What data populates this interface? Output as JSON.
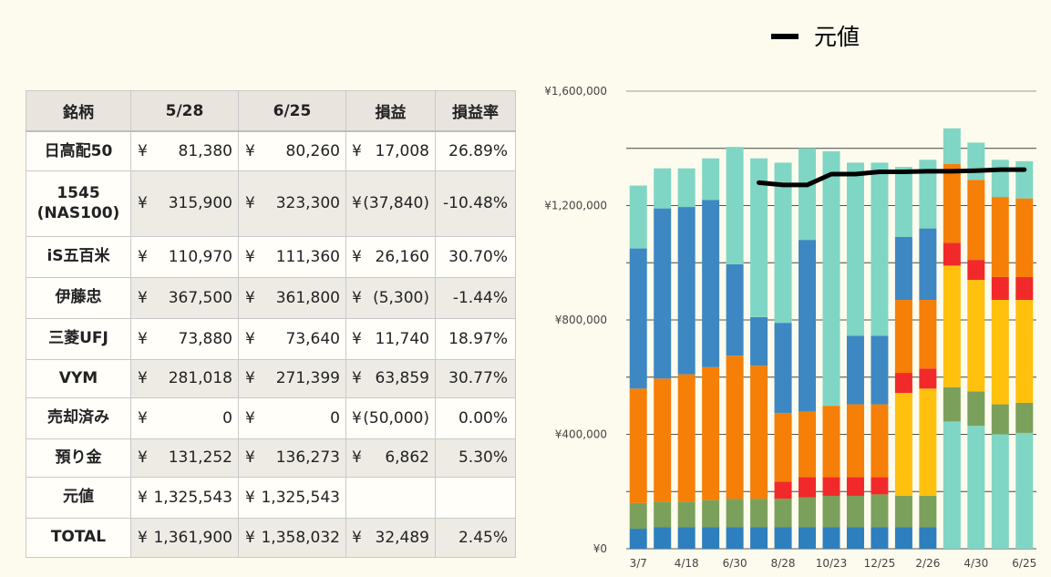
{
  "table": {
    "headers": [
      "銘柄",
      "5/28",
      "6/25",
      "損益",
      "損益率"
    ],
    "rows": [
      {
        "name": "日高配50",
        "v1": "81,380",
        "v2": "80,260",
        "pl": "17,008",
        "rate": "26.89%"
      },
      {
        "name": "1545\n(NAS100)",
        "v1": "315,900",
        "v2": "323,300",
        "pl": "(37,840)",
        "rate": "-10.48%"
      },
      {
        "name": "iS五百米",
        "v1": "110,970",
        "v2": "111,360",
        "pl": "26,160",
        "rate": "30.70%"
      },
      {
        "name": "伊藤忠",
        "v1": "367,500",
        "v2": "361,800",
        "pl": "(5,300)",
        "rate": "-1.44%"
      },
      {
        "name": "三菱UFJ",
        "v1": "73,880",
        "v2": "73,640",
        "pl": "11,740",
        "rate": "18.97%"
      },
      {
        "name": "VYM",
        "v1": "281,018",
        "v2": "271,399",
        "pl": "63,859",
        "rate": "30.77%"
      },
      {
        "name": "売却済み",
        "v1": "0",
        "v2": "0",
        "pl": "(50,000)",
        "rate": "0.00%"
      },
      {
        "name": "預り金",
        "v1": "131,252",
        "v2": "136,273",
        "pl": "6,862",
        "rate": "5.30%"
      },
      {
        "name": "元値",
        "v1": "1,325,543",
        "v2": "1,325,543",
        "pl": "",
        "rate": ""
      },
      {
        "name": "TOTAL",
        "v1": "1,361,900",
        "v2": "1,358,032",
        "pl": "32,489",
        "rate": "2.45%"
      }
    ]
  },
  "chart_data": {
    "type": "bar",
    "stacked": true,
    "legend": [
      {
        "name": "元値",
        "color": "#000000"
      }
    ],
    "y_ticks": [
      "¥0",
      "¥400,000",
      "¥800,000",
      "¥1,200,000",
      "¥1,600,000"
    ],
    "x_tick_labels": [
      {
        "index": 0,
        "label": "3/7"
      },
      {
        "index": 2,
        "label": "4/18"
      },
      {
        "index": 4,
        "label": "6/30"
      },
      {
        "index": 6,
        "label": "8/28"
      },
      {
        "index": 8,
        "label": "10/23"
      },
      {
        "index": 10,
        "label": "12/25"
      },
      {
        "index": 12,
        "label": "2/26"
      },
      {
        "index": 14,
        "label": "4/30"
      },
      {
        "index": 16,
        "label": "6/25"
      }
    ],
    "ylim": [
      0,
      1600000
    ],
    "grid": true,
    "colors": {
      "blue_dark": "#2e7fbe",
      "green": "#7ba05b",
      "orange": "#f57f07",
      "steel_blue": "#3d88c2",
      "red": "#f2292b",
      "yellow": "#ffc10e",
      "mint": "#7fd6c4"
    },
    "bars": [
      {
        "segments": [
          [
            "blue_dark",
            70000
          ],
          [
            "green",
            90000
          ],
          [
            "orange",
            400000
          ],
          [
            "steel_blue",
            490000
          ],
          [
            "mint",
            220000
          ]
        ]
      },
      {
        "segments": [
          [
            "blue_dark",
            75000
          ],
          [
            "green",
            90000
          ],
          [
            "orange",
            430000
          ],
          [
            "steel_blue",
            595000
          ],
          [
            "mint",
            140000
          ]
        ]
      },
      {
        "segments": [
          [
            "blue_dark",
            75000
          ],
          [
            "green",
            90000
          ],
          [
            "orange",
            445000
          ],
          [
            "steel_blue",
            585000
          ],
          [
            "mint",
            135000
          ]
        ]
      },
      {
        "segments": [
          [
            "blue_dark",
            75000
          ],
          [
            "green",
            95000
          ],
          [
            "orange",
            465000
          ],
          [
            "steel_blue",
            585000
          ],
          [
            "mint",
            145000
          ]
        ]
      },
      {
        "segments": [
          [
            "blue_dark",
            75000
          ],
          [
            "green",
            100000
          ],
          [
            "orange",
            500000
          ],
          [
            "steel_blue",
            320000
          ],
          [
            "mint",
            410000
          ]
        ]
      },
      {
        "segments": [
          [
            "blue_dark",
            75000
          ],
          [
            "green",
            100000
          ],
          [
            "orange",
            465000
          ],
          [
            "steel_blue",
            170000
          ],
          [
            "mint",
            555000
          ]
        ]
      },
      {
        "segments": [
          [
            "blue_dark",
            75000
          ],
          [
            "green",
            100000
          ],
          [
            "red",
            60000
          ],
          [
            "orange",
            240000
          ],
          [
            "steel_blue",
            315000
          ],
          [
            "mint",
            560000
          ]
        ]
      },
      {
        "segments": [
          [
            "blue_dark",
            75000
          ],
          [
            "green",
            105000
          ],
          [
            "red",
            70000
          ],
          [
            "orange",
            230000
          ],
          [
            "steel_blue",
            600000
          ],
          [
            "mint",
            320000
          ]
        ]
      },
      {
        "segments": [
          [
            "blue_dark",
            75000
          ],
          [
            "green",
            110000
          ],
          [
            "red",
            65000
          ],
          [
            "orange",
            250000
          ],
          [
            "steel_blue",
            0
          ],
          [
            "mint",
            890000
          ]
        ]
      },
      {
        "segments": [
          [
            "blue_dark",
            75000
          ],
          [
            "green",
            110000
          ],
          [
            "red",
            65000
          ],
          [
            "orange",
            255000
          ],
          [
            "steel_blue",
            240000
          ],
          [
            "mint",
            605000
          ]
        ]
      },
      {
        "segments": [
          [
            "blue_dark",
            75000
          ],
          [
            "green",
            115000
          ],
          [
            "red",
            60000
          ],
          [
            "orange",
            255000
          ],
          [
            "steel_blue",
            240000
          ],
          [
            "mint",
            605000
          ]
        ]
      },
      {
        "segments": [
          [
            "blue_dark",
            75000
          ],
          [
            "green",
            110000
          ],
          [
            "yellow",
            360000
          ],
          [
            "red",
            70000
          ],
          [
            "orange",
            255000
          ],
          [
            "steel_blue",
            220000
          ],
          [
            "mint",
            245000
          ]
        ]
      },
      {
        "segments": [
          [
            "blue_dark",
            75000
          ],
          [
            "green",
            110000
          ],
          [
            "yellow",
            375000
          ],
          [
            "red",
            70000
          ],
          [
            "orange",
            240000
          ],
          [
            "steel_blue",
            250000
          ],
          [
            "mint",
            240000
          ]
        ]
      },
      {
        "segments": [
          [
            "mint",
            445000
          ],
          [
            "green",
            120000
          ],
          [
            "yellow",
            425000
          ],
          [
            "red",
            80000
          ],
          [
            "orange",
            275000
          ],
          [
            "mint",
            125000
          ]
        ]
      },
      {
        "segments": [
          [
            "mint",
            430000
          ],
          [
            "green",
            120000
          ],
          [
            "yellow",
            390000
          ],
          [
            "red",
            70000
          ],
          [
            "orange",
            280000
          ],
          [
            "mint",
            130000
          ]
        ]
      },
      {
        "segments": [
          [
            "mint",
            400000
          ],
          [
            "green",
            105000
          ],
          [
            "yellow",
            365000
          ],
          [
            "red",
            80000
          ],
          [
            "orange",
            280000
          ],
          [
            "mint",
            130000
          ]
        ]
      },
      {
        "segments": [
          [
            "mint",
            405000
          ],
          [
            "green",
            105000
          ],
          [
            "yellow",
            360000
          ],
          [
            "red",
            80000
          ],
          [
            "orange",
            275000
          ],
          [
            "mint",
            130000
          ]
        ]
      }
    ],
    "baseline_line": {
      "name": "元値",
      "start_index": 5,
      "values": [
        1280000,
        1272000,
        1272000,
        1310000,
        1310000,
        1318000,
        1318000,
        1320000,
        1320000,
        1322000,
        1325543,
        1325543
      ]
    }
  }
}
